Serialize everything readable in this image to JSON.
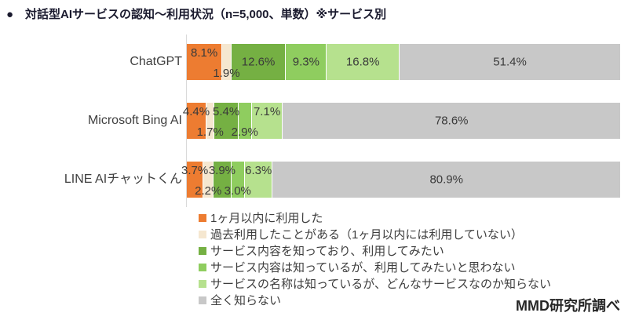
{
  "title": "●　対話型AIサービスの認知～利用状況（n=5,000、単数）※サービス別",
  "source_note": "MMD研究所調べ",
  "colors": {
    "title_text": "#1a1a2e",
    "label_text": "#3a3a3a",
    "axis_line": "#d9d9d9",
    "background": "#ffffff"
  },
  "chart_data": {
    "type": "bar",
    "variant": "horizontal-stacked-100percent",
    "unit": "%",
    "xlim": [
      0,
      100
    ],
    "legend_position": "bottom",
    "value_label_format": "one-decimal-percent",
    "categories": [
      "ChatGPT",
      "Microsoft Bing AI",
      "LINE AIチャットくん"
    ],
    "series": [
      {
        "name": "1ヶ月以内に利用した",
        "color": "#ed7c31",
        "values": [
          8.1,
          4.4,
          3.7
        ]
      },
      {
        "name": "過去利用したことがある（1ヶ月以内には利用していない）",
        "color": "#f5e7d0",
        "values": [
          1.9,
          1.7,
          2.2
        ]
      },
      {
        "name": "サービス内容を知っており、利用してみたい",
        "color": "#75b043",
        "values": [
          12.6,
          5.4,
          3.9
        ]
      },
      {
        "name": "サービス内容は知っているが、利用してみたいと思わない",
        "color": "#8fcd5f",
        "values": [
          9.3,
          2.9,
          3.0
        ]
      },
      {
        "name": "サービスの名称は知っているが、どんなサービスなのか知らない",
        "color": "#b6e18e",
        "values": [
          16.8,
          7.1,
          6.3
        ]
      },
      {
        "name": "全く知らない",
        "color": "#c8c8c8",
        "values": [
          51.4,
          78.6,
          80.9
        ]
      }
    ]
  }
}
